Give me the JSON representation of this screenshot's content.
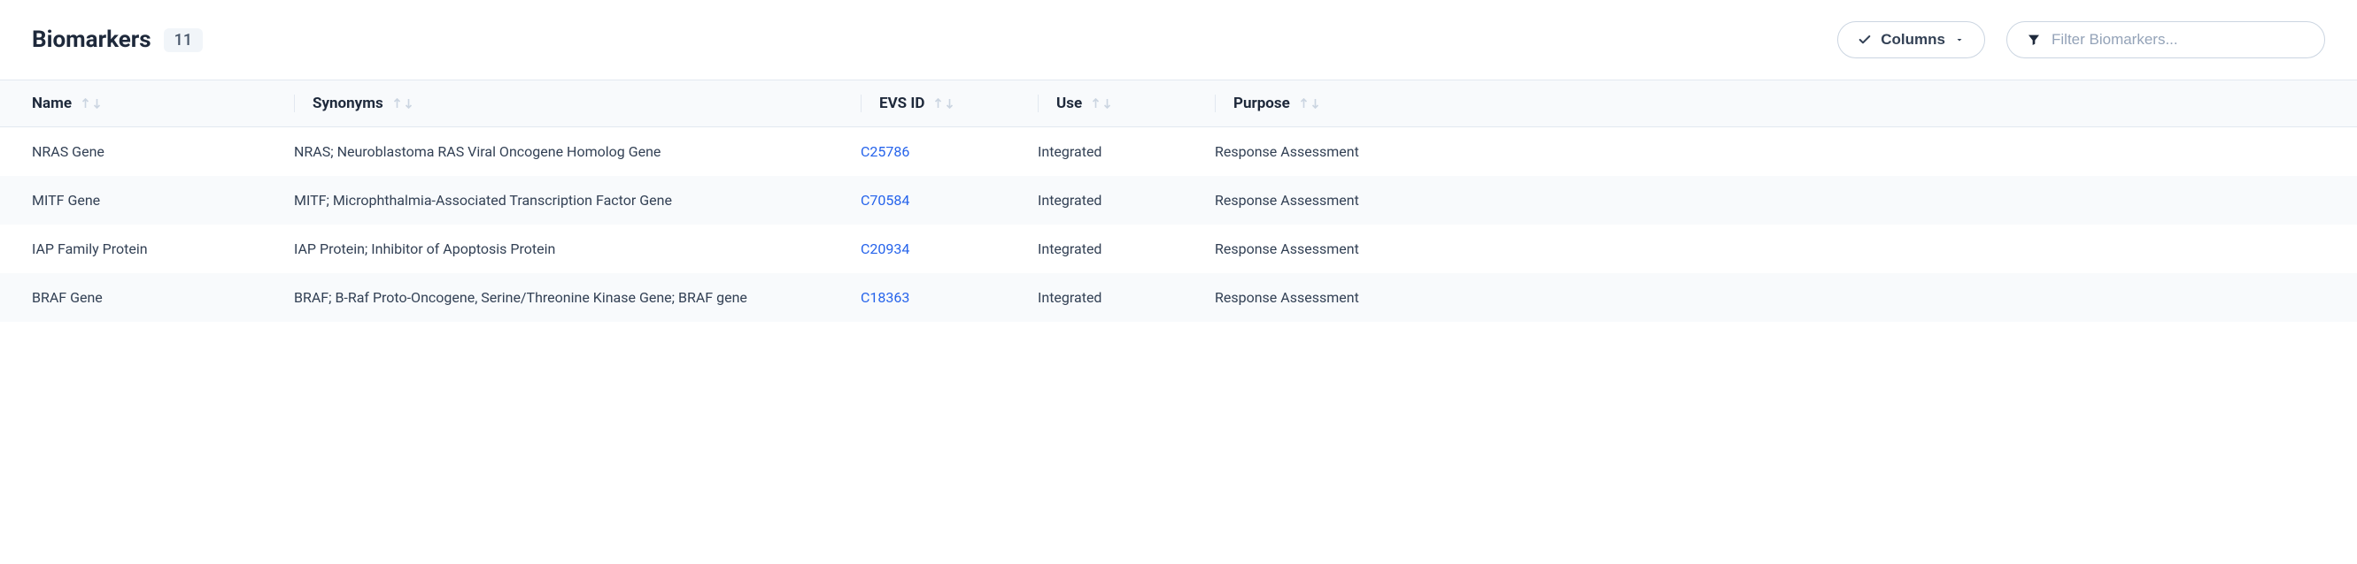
{
  "header": {
    "title": "Biomarkers",
    "count": "11",
    "columns_label": "Columns",
    "filter_placeholder": "Filter Biomarkers..."
  },
  "columns": [
    {
      "key": "name",
      "label": "Name"
    },
    {
      "key": "synonyms",
      "label": "Synonyms"
    },
    {
      "key": "evs_id",
      "label": "EVS ID"
    },
    {
      "key": "use",
      "label": "Use"
    },
    {
      "key": "purpose",
      "label": "Purpose"
    }
  ],
  "rows": [
    {
      "name": "NRAS Gene",
      "synonyms": "NRAS; Neuroblastoma RAS Viral Oncogene Homolog Gene",
      "evs_id": "C25786",
      "use": "Integrated",
      "purpose": "Response Assessment"
    },
    {
      "name": "MITF Gene",
      "synonyms": "MITF; Microphthalmia-Associated Transcription Factor Gene",
      "evs_id": "C70584",
      "use": "Integrated",
      "purpose": "Response Assessment"
    },
    {
      "name": "IAP Family Protein",
      "synonyms": "IAP Protein; Inhibitor of Apoptosis Protein",
      "evs_id": "C20934",
      "use": "Integrated",
      "purpose": "Response Assessment"
    },
    {
      "name": "BRAF Gene",
      "synonyms": "BRAF; B-Raf Proto-Oncogene, Serine/Threonine Kinase Gene; BRAF gene",
      "evs_id": "C18363",
      "use": "Integrated",
      "purpose": "Response Assessment"
    }
  ],
  "colors": {
    "link": "#2563eb",
    "text": "#334155",
    "heading": "#1e293b",
    "badge_bg": "#f1f5f9",
    "stripe_bg": "#f8fafc",
    "border": "#e2e8f0",
    "arrow_inactive": "#cbd5e1"
  }
}
